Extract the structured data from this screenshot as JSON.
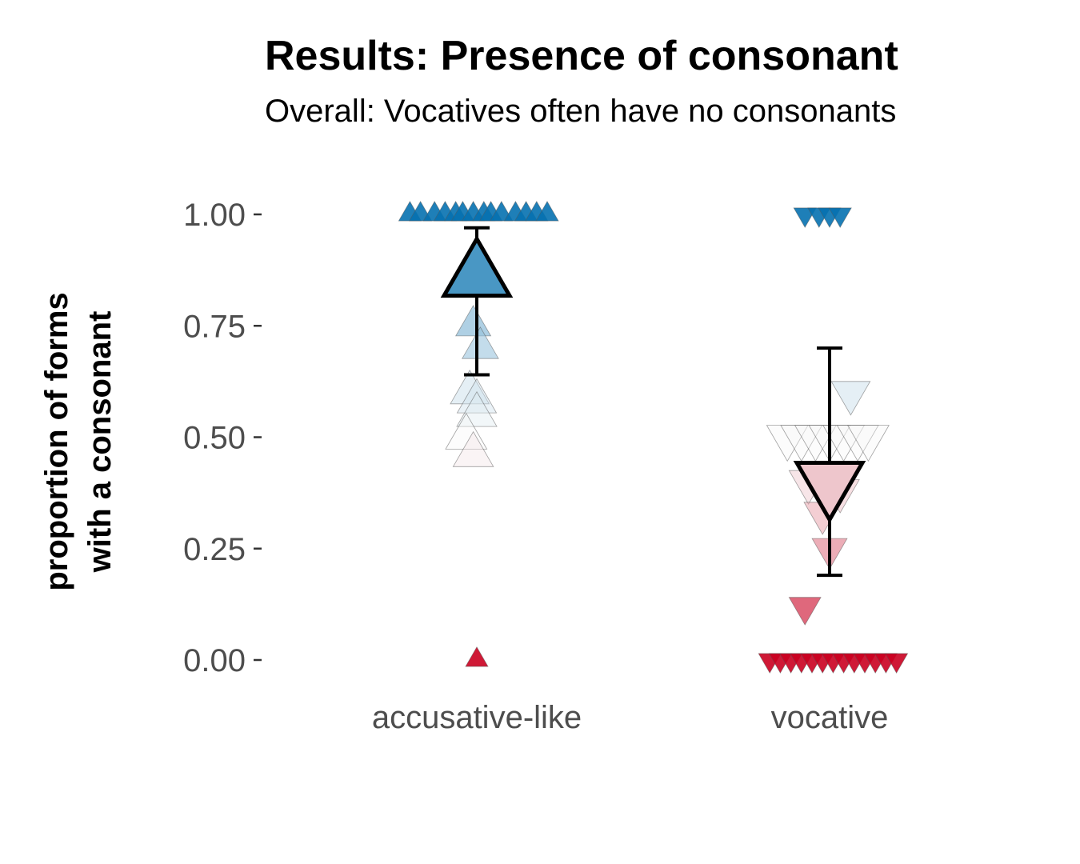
{
  "title": "Results: Presence of consonant",
  "subtitle": "Overall: Vocatives often have no consonants",
  "chart_data": {
    "type": "scatter",
    "ylabel_lines": [
      "proportion of forms",
      "with a consonant"
    ],
    "xlabel": "",
    "categories": [
      "accusative-like",
      "vocative"
    ],
    "ylim": [
      -0.07,
      1.08
    ],
    "yticks": [
      0.0,
      0.25,
      0.5,
      0.75,
      1.0
    ],
    "ytick_labels": [
      "0.00",
      "0.25",
      "0.50",
      "0.75",
      "1.00"
    ],
    "grid": false,
    "color_scale": {
      "low": "#ca0020",
      "mid": "#f7f7f7",
      "high": "#0571b0"
    },
    "series": [
      {
        "category": "accusative-like",
        "marker": "triangle-up",
        "mean": 0.86,
        "error_low": 0.64,
        "error_high": 0.97,
        "points": [
          {
            "y": 1.0,
            "offset": -0.19
          },
          {
            "y": 1.0,
            "offset": -0.16
          },
          {
            "y": 1.0,
            "offset": -0.12
          },
          {
            "y": 1.0,
            "offset": -0.09
          },
          {
            "y": 1.0,
            "offset": -0.06
          },
          {
            "y": 1.0,
            "offset": -0.04
          },
          {
            "y": 1.0,
            "offset": -0.01
          },
          {
            "y": 1.0,
            "offset": 0.02
          },
          {
            "y": 1.0,
            "offset": 0.04
          },
          {
            "y": 1.0,
            "offset": 0.07
          },
          {
            "y": 1.0,
            "offset": 0.11
          },
          {
            "y": 1.0,
            "offset": 0.14
          },
          {
            "y": 1.0,
            "offset": 0.17
          },
          {
            "y": 1.0,
            "offset": 0.2
          },
          {
            "y": 0.75,
            "offset": -0.01
          },
          {
            "y": 0.7,
            "offset": 0.01
          },
          {
            "y": 0.6,
            "offset": -0.02
          },
          {
            "y": 0.58,
            "offset": 0.0
          },
          {
            "y": 0.55,
            "offset": 0.0
          },
          {
            "y": 0.5,
            "offset": -0.03
          },
          {
            "y": 0.46,
            "offset": -0.01
          },
          {
            "y": 0.0,
            "offset": 0.0
          }
        ]
      },
      {
        "category": "vocative",
        "marker": "triangle-down",
        "mean": 0.4,
        "error_low": 0.19,
        "error_high": 0.7,
        "points": [
          {
            "y": 1.0,
            "offset": -0.07
          },
          {
            "y": 1.0,
            "offset": -0.03
          },
          {
            "y": 1.0,
            "offset": 0.0
          },
          {
            "y": 1.0,
            "offset": 0.03
          },
          {
            "y": 0.6,
            "offset": 0.06
          },
          {
            "y": 0.5,
            "offset": -0.12
          },
          {
            "y": 0.5,
            "offset": -0.08
          },
          {
            "y": 0.5,
            "offset": -0.04
          },
          {
            "y": 0.5,
            "offset": 0.0
          },
          {
            "y": 0.5,
            "offset": 0.04
          },
          {
            "y": 0.5,
            "offset": 0.08
          },
          {
            "y": 0.5,
            "offset": 0.11
          },
          {
            "y": 0.4,
            "offset": -0.06
          },
          {
            "y": 0.38,
            "offset": 0.03
          },
          {
            "y": 0.33,
            "offset": -0.02
          },
          {
            "y": 0.25,
            "offset": 0.0
          },
          {
            "y": 0.12,
            "offset": -0.07
          },
          {
            "y": 0.0,
            "offset": -0.17
          },
          {
            "y": 0.0,
            "offset": -0.14
          },
          {
            "y": 0.0,
            "offset": -0.11
          },
          {
            "y": 0.0,
            "offset": -0.08
          },
          {
            "y": 0.0,
            "offset": -0.05
          },
          {
            "y": 0.0,
            "offset": -0.02
          },
          {
            "y": 0.0,
            "offset": 0.01
          },
          {
            "y": 0.0,
            "offset": 0.04
          },
          {
            "y": 0.0,
            "offset": 0.07
          },
          {
            "y": 0.0,
            "offset": 0.1
          },
          {
            "y": 0.0,
            "offset": 0.13
          },
          {
            "y": 0.0,
            "offset": 0.16
          },
          {
            "y": 0.0,
            "offset": 0.19
          }
        ]
      }
    ]
  }
}
